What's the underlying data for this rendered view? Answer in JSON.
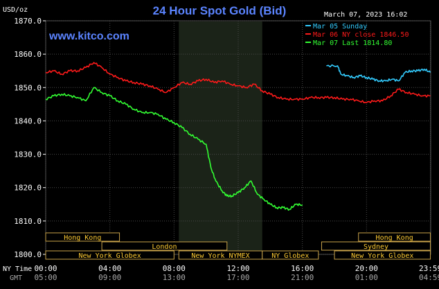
{
  "chart_data": {
    "type": "line",
    "title": "24 Hour Spot Gold (Bid)",
    "watermark": "www.kitco.com",
    "timestamp": "March 07, 2023 16:02",
    "ylabel": "USD/oz",
    "ylim": [
      1800,
      1870
    ],
    "yticks": [
      "1870.0",
      "1860.0",
      "1850.0",
      "1840.0",
      "1830.0",
      "1820.0",
      "1810.0",
      "1800.0"
    ],
    "ytick_values": [
      1870,
      1860,
      1850,
      1840,
      1830,
      1820,
      1810,
      1800
    ],
    "xlim": [
      0,
      24
    ],
    "grid": true,
    "legend_position": "top-right",
    "x_axis_label_ny": "NY Time",
    "x_axis_label_gmt": "GMT",
    "xticks_ny": [
      "00:00",
      "04:00",
      "08:00",
      "12:00",
      "16:00",
      "20:00",
      "23:59"
    ],
    "xticks_gmt": [
      "05:00",
      "09:00",
      "13:00",
      "17:00",
      "21:00",
      "01:00",
      "04:59"
    ],
    "xtick_hours": [
      0,
      4,
      8,
      12,
      16,
      20,
      23.98
    ],
    "highlight_band": [
      8.3,
      13.5
    ],
    "series": [
      {
        "name": "Mar 05 Sunday",
        "color": "#33ccff",
        "x": [
          17.5,
          18.2,
          18.4,
          18.8,
          19.2,
          19.6,
          20.0,
          20.4,
          20.8,
          21.2,
          21.6,
          22.0,
          22.4,
          22.8,
          23.2,
          23.6,
          23.98
        ],
        "y": [
          1856.5,
          1856.5,
          1854.0,
          1853.5,
          1853.0,
          1853.5,
          1853.0,
          1852.5,
          1852.0,
          1852.0,
          1852.5,
          1852.0,
          1854.5,
          1855.0,
          1855.0,
          1855.5,
          1854.5
        ]
      },
      {
        "name": "Mar 06 NY close 1846.50",
        "color": "#ff1a1a",
        "x": [
          0,
          0.5,
          1.0,
          1.5,
          2.0,
          2.5,
          3.0,
          3.5,
          4.0,
          4.5,
          5.0,
          5.5,
          6.0,
          6.5,
          7.0,
          7.5,
          8.0,
          8.5,
          9.0,
          9.5,
          10.0,
          10.5,
          11.0,
          11.5,
          12.0,
          12.5,
          13.0,
          13.5,
          14.0,
          14.5,
          15.0,
          15.5,
          16.0,
          16.5,
          17.0,
          17.5,
          18.0,
          18.5,
          19.0,
          19.5,
          20.0,
          20.5,
          21.0,
          21.5,
          22.0,
          22.5,
          23.0,
          23.5,
          23.98
        ],
        "y": [
          1854.5,
          1855,
          1854,
          1855,
          1855,
          1856,
          1857.5,
          1856,
          1854,
          1853,
          1852,
          1851.5,
          1851,
          1850.5,
          1849.5,
          1848.5,
          1850,
          1851.5,
          1851,
          1852,
          1852.5,
          1851.5,
          1852,
          1851,
          1850.5,
          1850,
          1851,
          1849,
          1848,
          1847,
          1846.5,
          1846.5,
          1846.5,
          1847,
          1847,
          1847,
          1847,
          1846.5,
          1846.5,
          1846,
          1845.5,
          1846,
          1846,
          1847.5,
          1849.5,
          1848.5,
          1848,
          1847.5,
          1847.5
        ]
      },
      {
        "name": "Mar 07 Last 1814.80",
        "color": "#33ff33",
        "x": [
          0,
          0.5,
          1.0,
          1.5,
          2.0,
          2.5,
          3.0,
          3.5,
          4.0,
          4.5,
          5.0,
          5.5,
          6.0,
          6.5,
          7.0,
          7.5,
          8.0,
          8.5,
          9.0,
          9.5,
          10.0,
          10.3,
          10.6,
          11.0,
          11.3,
          11.6,
          12.0,
          12.4,
          12.8,
          13.2,
          13.6,
          14.0,
          14.4,
          14.8,
          15.2,
          15.6,
          16.0
        ],
        "y": [
          1846.5,
          1847.5,
          1848,
          1847.5,
          1847,
          1846,
          1850,
          1848.5,
          1847.5,
          1846,
          1845,
          1843.5,
          1842.5,
          1842.5,
          1842,
          1840.5,
          1839.5,
          1838,
          1836,
          1834.5,
          1833,
          1826,
          1822,
          1819,
          1817.5,
          1817.5,
          1818.5,
          1820,
          1822,
          1818,
          1816.5,
          1815,
          1814,
          1814,
          1813.5,
          1815,
          1814.8
        ]
      }
    ],
    "sessions": [
      {
        "name": "Hong Kong",
        "start": 0.0,
        "end": 4.6,
        "row": 0
      },
      {
        "name": "Hong Kong",
        "start": 19.5,
        "end": 23.98,
        "row": 0
      },
      {
        "name": "London",
        "start": 3.5,
        "end": 11.3,
        "row": 1
      },
      {
        "name": "Sydney",
        "start": 17.2,
        "end": 23.98,
        "row": 1
      },
      {
        "name": "New York Globex",
        "start": 0.0,
        "end": 8.0,
        "row": 2
      },
      {
        "name": "New York NYMEX",
        "start": 8.3,
        "end": 13.5,
        "row": 2
      },
      {
        "name": "NY Globex",
        "start": 13.5,
        "end": 17.0,
        "row": 2
      },
      {
        "name": "New York Globex",
        "start": 18.0,
        "end": 23.98,
        "row": 2
      }
    ]
  }
}
